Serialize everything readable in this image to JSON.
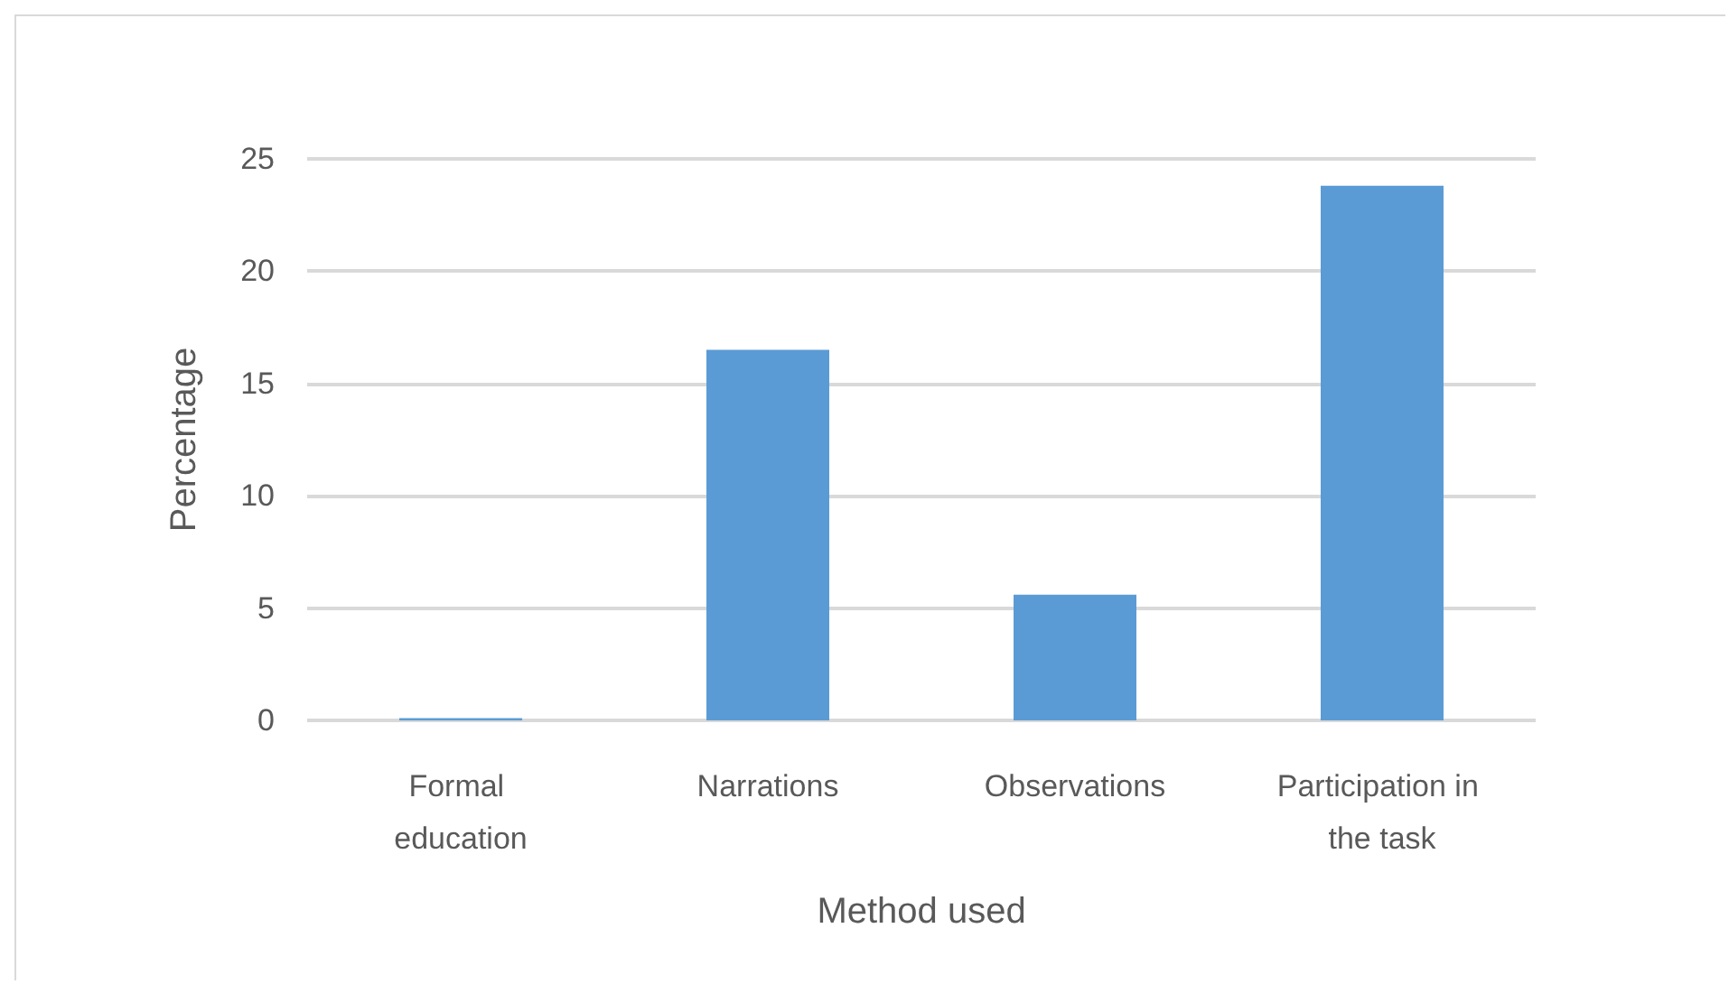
{
  "chart_data": {
    "type": "bar",
    "xlabel": "Method used",
    "ylabel": "Percentage",
    "categories": [
      "Formal education",
      "Narrations",
      "Observations",
      "Participation in the task"
    ],
    "values": [
      0.1,
      16.5,
      5.6,
      23.8
    ],
    "color": "#5b9bd5",
    "ylim": [
      0,
      25
    ],
    "yticks": [
      0,
      5,
      10,
      15,
      20,
      25
    ],
    "grid": "y"
  }
}
